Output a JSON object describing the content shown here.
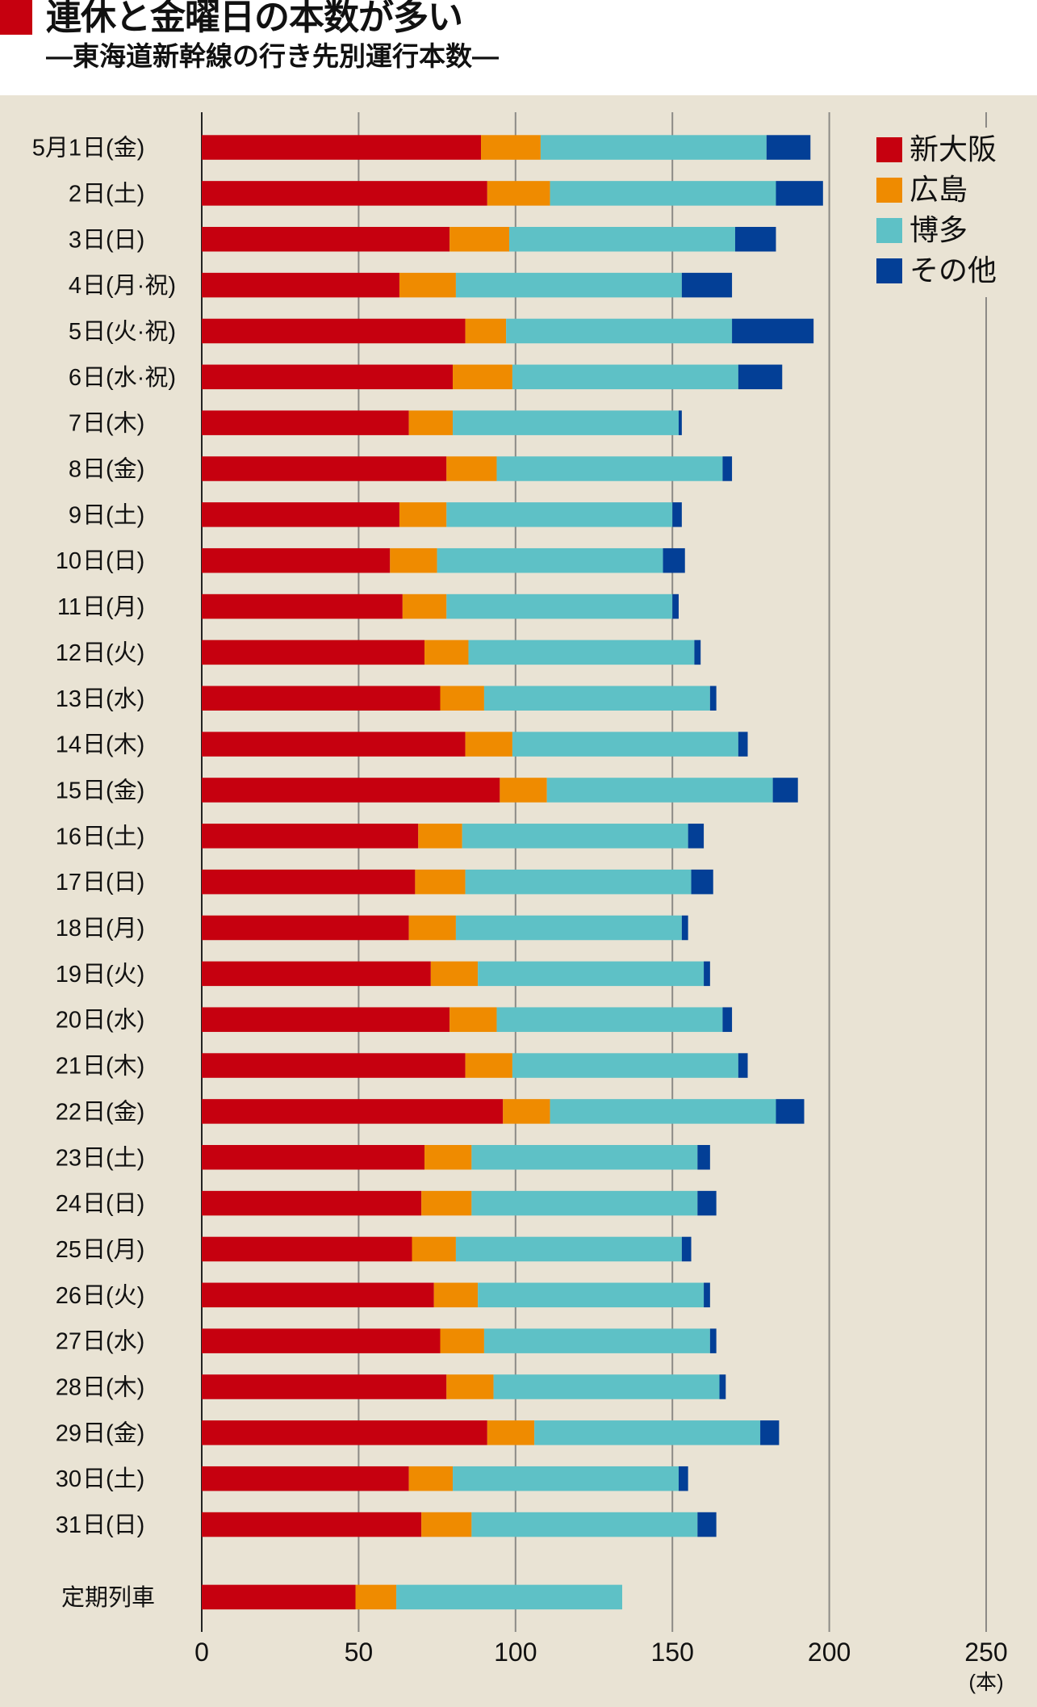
{
  "chart_data": {
    "type": "bar",
    "orientation": "horizontal",
    "stacked": true,
    "title": "連休と金曜日の本数が多い",
    "subtitle": "―東海道新幹線の行き先別運行本数―",
    "xlabel": "(本)",
    "ylabel": "",
    "xlim": [
      0,
      250
    ],
    "x_ticks": [
      0,
      50,
      100,
      150,
      200,
      250
    ],
    "grid": true,
    "legend_position": "top-right",
    "categories": [
      "5月1日(金)",
      "2日(土)",
      "3日(日)",
      "4日(月·祝)",
      "5日(火·祝)",
      "6日(水·祝)",
      "7日(木)",
      "8日(金)",
      "9日(土)",
      "10日(日)",
      "11日(月)",
      "12日(火)",
      "13日(水)",
      "14日(木)",
      "15日(金)",
      "16日(土)",
      "17日(日)",
      "18日(月)",
      "19日(火)",
      "20日(水)",
      "21日(木)",
      "22日(金)",
      "23日(土)",
      "24日(日)",
      "25日(月)",
      "26日(火)",
      "27日(水)",
      "28日(木)",
      "29日(金)",
      "30日(土)",
      "31日(日)",
      "定期列車"
    ],
    "series": [
      {
        "name": "新大阪",
        "color": "#c6000f",
        "values": [
          89,
          91,
          79,
          63,
          84,
          80,
          66,
          78,
          63,
          60,
          64,
          71,
          76,
          84,
          95,
          69,
          68,
          66,
          73,
          79,
          84,
          96,
          71,
          70,
          67,
          74,
          76,
          78,
          91,
          66,
          70,
          49
        ]
      },
      {
        "name": "広島",
        "color": "#ef8b00",
        "values": [
          19,
          20,
          19,
          18,
          13,
          19,
          14,
          16,
          15,
          15,
          14,
          14,
          14,
          15,
          15,
          14,
          16,
          15,
          15,
          15,
          15,
          15,
          15,
          16,
          14,
          14,
          14,
          15,
          15,
          14,
          16,
          13
        ]
      },
      {
        "name": "博多",
        "color": "#5ec1c6",
        "values": [
          72,
          72,
          72,
          72,
          72,
          72,
          72,
          72,
          72,
          72,
          72,
          72,
          72,
          72,
          72,
          72,
          72,
          72,
          72,
          72,
          72,
          72,
          72,
          72,
          72,
          72,
          72,
          72,
          72,
          72,
          72,
          72
        ]
      },
      {
        "name": "その他",
        "color": "#033f96",
        "values": [
          14,
          15,
          13,
          16,
          26,
          14,
          1,
          3,
          3,
          7,
          2,
          2,
          2,
          3,
          8,
          5,
          7,
          2,
          2,
          3,
          3,
          9,
          4,
          6,
          3,
          2,
          2,
          2,
          6,
          3,
          6,
          0
        ]
      }
    ]
  }
}
